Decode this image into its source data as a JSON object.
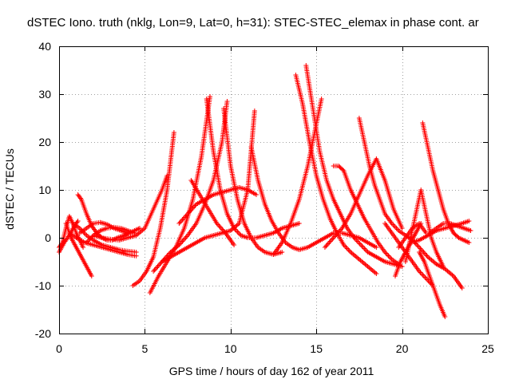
{
  "chart_data": {
    "type": "scatter",
    "title": "dSTEC Iono. truth (nklg, Lon=9, Lat=0, h=31): STEC-STEC_elemax in phase cont. ar",
    "xlabel": "GPS time / hours of day 162 of year 2011",
    "ylabel": "dSTEC  / TECUs",
    "xlim": [
      0,
      25
    ],
    "ylim": [
      -20,
      40
    ],
    "xticks": [
      0,
      5,
      10,
      15,
      20,
      25
    ],
    "yticks": [
      -20,
      -10,
      0,
      10,
      20,
      30,
      40
    ],
    "grid": true,
    "marker": "+",
    "color": "#ff0000",
    "series": [
      {
        "x": [
          0.0,
          0.2,
          0.4,
          0.6,
          0.8,
          1.0,
          1.2,
          1.4
        ],
        "y": [
          -2.0,
          -1.0,
          2.0,
          4.5,
          3.0,
          1.0,
          -0.5,
          -2.0
        ]
      },
      {
        "x": [
          0.0,
          0.3,
          0.6,
          0.9,
          1.1
        ],
        "y": [
          -3.0,
          -1.0,
          0.5,
          2.5,
          3.5
        ]
      },
      {
        "x": [
          0.4,
          0.7,
          1.0,
          1.3,
          1.6,
          1.9
        ],
        "y": [
          3.0,
          0.0,
          -2.0,
          -4.0,
          -6.0,
          -8.0
        ]
      },
      {
        "x": [
          1.1,
          1.3,
          1.6,
          1.9,
          2.2,
          2.5,
          2.8,
          3.1,
          3.4,
          3.8,
          4.1,
          4.4,
          4.7
        ],
        "y": [
          9.0,
          8.0,
          5.0,
          2.5,
          1.0,
          0.0,
          -0.5,
          -0.5,
          0.0,
          0.5,
          1.0,
          1.5,
          2.0
        ]
      },
      {
        "x": [
          0.8,
          1.2,
          1.6,
          2.0,
          2.5,
          3.0,
          3.5,
          4.0,
          4.5
        ],
        "y": [
          3.0,
          2.0,
          0.5,
          -0.5,
          -1.5,
          -2.0,
          -2.5,
          -2.8,
          -3.0
        ]
      },
      {
        "x": [
          0.6,
          1.0,
          1.5,
          2.0,
          2.5,
          3.0,
          3.5,
          4.0,
          4.5
        ],
        "y": [
          1.0,
          0.0,
          -1.0,
          -1.5,
          -2.0,
          -2.5,
          -3.0,
          -3.5,
          -3.8
        ]
      },
      {
        "x": [
          1.2,
          1.6,
          2.0,
          2.4,
          2.8,
          3.2,
          3.6,
          4.0
        ],
        "y": [
          1.0,
          2.0,
          3.0,
          3.2,
          2.8,
          2.0,
          1.5,
          1.0
        ]
      },
      {
        "x": [
          1.6,
          2.0,
          2.4,
          2.8,
          3.2,
          3.6,
          4.0,
          4.4
        ],
        "y": [
          -1.0,
          0.5,
          1.5,
          2.0,
          2.2,
          2.0,
          1.5,
          1.0
        ]
      },
      {
        "x": [
          2.0,
          2.5,
          3.0,
          3.5,
          4.0,
          4.5,
          5.0,
          5.5,
          6.0,
          6.3
        ],
        "y": [
          0.5,
          0.0,
          -0.3,
          -0.5,
          0.0,
          0.5,
          2.0,
          6.0,
          10.0,
          13.0
        ]
      },
      {
        "x": [
          4.3,
          4.7,
          5.1,
          5.5,
          5.9,
          6.3,
          6.7
        ],
        "y": [
          -10.0,
          -9.0,
          -7.0,
          -4.0,
          2.0,
          10.0,
          22.0
        ]
      },
      {
        "x": [
          5.3,
          5.8,
          6.3,
          6.8,
          7.3,
          7.8,
          8.3,
          8.8
        ],
        "y": [
          -11.5,
          -8.0,
          -5.0,
          -2.0,
          2.0,
          8.0,
          17.0,
          29.5
        ]
      },
      {
        "x": [
          5.5,
          6.0,
          6.5,
          7.0,
          7.5,
          8.0,
          8.5,
          9.0,
          9.5,
          9.8
        ],
        "y": [
          -7.0,
          -5.0,
          -3.0,
          -1.5,
          0.5,
          3.0,
          7.0,
          12.0,
          20.0,
          28.5
        ]
      },
      {
        "x": [
          6.0,
          6.5,
          7.0,
          7.5,
          8.0,
          8.5,
          9.0,
          9.5,
          10.0,
          10.5,
          11.0,
          11.4
        ],
        "y": [
          -5.0,
          -4.0,
          -3.0,
          -2.0,
          -1.0,
          0.0,
          0.5,
          1.0,
          1.5,
          3.0,
          10.0,
          26.5
        ]
      },
      {
        "x": [
          7.7,
          8.2,
          8.7,
          9.2,
          9.7,
          10.2
        ],
        "y": [
          12.0,
          9.0,
          6.0,
          3.0,
          1.0,
          -1.5
        ]
      },
      {
        "x": [
          8.6,
          9.0,
          9.4,
          9.8,
          10.2,
          10.6,
          11.0,
          11.5,
          12.0,
          12.5,
          13.0,
          13.5,
          14.0
        ],
        "y": [
          29.0,
          18.0,
          10.0,
          5.0,
          2.0,
          0.5,
          0.0,
          0.0,
          0.5,
          1.0,
          2.0,
          2.5,
          3.0
        ]
      },
      {
        "x": [
          9.6,
          10.0,
          10.4,
          10.8,
          11.2,
          11.6,
          12.0,
          12.5,
          13.0
        ],
        "y": [
          27.0,
          15.0,
          8.0,
          3.0,
          0.0,
          -2.0,
          -3.0,
          -3.5,
          -3.0
        ]
      },
      {
        "x": [
          7.0,
          7.5,
          8.0,
          8.5,
          9.0,
          9.5,
          10.0,
          10.5,
          11.0,
          11.5
        ],
        "y": [
          3.0,
          5.0,
          7.0,
          8.0,
          9.0,
          9.5,
          10.0,
          10.5,
          10.0,
          9.0
        ]
      },
      {
        "x": [
          11.2,
          11.6,
          12.0,
          12.4,
          12.8,
          13.2,
          13.6,
          14.0,
          14.5,
          15.0,
          15.5,
          16.0,
          16.5,
          17.0,
          17.5,
          18.0,
          18.5
        ],
        "y": [
          19.0,
          12.0,
          7.0,
          3.5,
          1.0,
          -1.0,
          -2.0,
          -2.5,
          -2.0,
          -1.0,
          0.0,
          1.0,
          1.0,
          0.5,
          0.0,
          -1.0,
          -2.0
        ]
      },
      {
        "x": [
          12.5,
          13.0,
          13.5,
          14.0,
          14.5,
          14.9,
          15.3
        ],
        "y": [
          -3.5,
          -1.0,
          3.0,
          8.0,
          15.0,
          22.0,
          29.0
        ]
      },
      {
        "x": [
          13.8,
          14.2,
          14.6,
          15.0,
          15.4,
          15.8,
          16.2,
          16.6,
          17.0,
          17.5,
          18.0,
          18.5
        ],
        "y": [
          34.0,
          28.0,
          20.0,
          13.0,
          8.0,
          4.0,
          1.0,
          -1.5,
          -3.0,
          -4.5,
          -6.0,
          -7.5
        ]
      },
      {
        "x": [
          14.4,
          14.8,
          15.2,
          15.6,
          16.0,
          16.4,
          16.8,
          17.2,
          17.6,
          18.0,
          18.5,
          19.0,
          19.5,
          20.0
        ],
        "y": [
          36.0,
          27.0,
          18.0,
          12.0,
          8.0,
          5.0,
          2.0,
          0.0,
          -1.5,
          -3.0,
          -4.0,
          -5.0,
          -5.5,
          -6.0
        ]
      },
      {
        "x": [
          16.0,
          16.3,
          16.6,
          17.0,
          17.4,
          17.8,
          18.2,
          18.6,
          19.0,
          19.4,
          19.8
        ],
        "y": [
          15.0,
          15.0,
          14.0,
          10.0,
          7.0,
          4.0,
          1.5,
          -1.0,
          -3.0,
          -4.5,
          -5.5
        ]
      },
      {
        "x": [
          15.5,
          16.0,
          16.5,
          17.0,
          17.5,
          18.0,
          18.5,
          19.0,
          19.5,
          20.0
        ],
        "y": [
          -2.0,
          0.0,
          2.0,
          5.0,
          9.0,
          13.0,
          16.5,
          12.0,
          6.0,
          2.0
        ]
      },
      {
        "x": [
          17.5,
          17.8,
          18.1,
          18.4,
          18.7,
          19.0,
          19.4,
          19.8,
          20.2,
          20.6,
          21.0,
          21.5,
          22.0,
          22.5,
          23.0,
          23.5
        ],
        "y": [
          25.0,
          20.0,
          15.0,
          11.0,
          8.0,
          5.0,
          3.0,
          1.5,
          0.5,
          -0.5,
          -2.0,
          -4.0,
          -5.5,
          -6.5,
          -8.0,
          -10.5
        ]
      },
      {
        "x": [
          19.0,
          19.4,
          19.8,
          20.2,
          20.6,
          21.0,
          21.4,
          21.8
        ],
        "y": [
          3.0,
          1.0,
          -1.0,
          -3.0,
          -5.0,
          -7.0,
          -8.5,
          -10.0
        ]
      },
      {
        "x": [
          19.6,
          19.9,
          20.2,
          20.5,
          20.8,
          21.1
        ],
        "y": [
          -8.0,
          -5.0,
          -3.0,
          -1.0,
          1.0,
          3.0
        ]
      },
      {
        "x": [
          20.2,
          20.5,
          20.8,
          21.1,
          21.4,
          21.7,
          22.0,
          22.4
        ],
        "y": [
          -5.0,
          0.0,
          5.0,
          10.0,
          5.0,
          0.0,
          -3.0,
          -6.0
        ]
      },
      {
        "x": [
          21.0,
          21.3,
          21.6,
          21.9,
          22.2,
          22.5
        ],
        "y": [
          -3.0,
          -5.0,
          -8.0,
          -11.0,
          -14.0,
          -16.5
        ]
      },
      {
        "x": [
          21.2,
          21.5,
          21.8,
          22.1,
          22.4,
          22.7,
          23.0,
          23.3,
          23.6,
          23.9
        ],
        "y": [
          24.0,
          19.0,
          14.0,
          10.0,
          6.0,
          3.0,
          1.0,
          0.0,
          -0.5,
          -1.0
        ]
      },
      {
        "x": [
          21.6,
          22.0,
          22.4,
          22.8,
          23.2,
          23.6,
          24.0
        ],
        "y": [
          1.0,
          2.0,
          3.0,
          3.0,
          2.5,
          2.0,
          1.5
        ]
      },
      {
        "x": [
          20.5,
          21.0,
          21.5,
          22.0,
          22.5,
          23.0,
          23.5,
          23.9
        ],
        "y": [
          -1.0,
          -0.5,
          0.5,
          1.5,
          2.0,
          2.5,
          3.0,
          3.5
        ]
      },
      {
        "x": [
          19.8,
          20.2,
          20.6,
          21.0,
          21.4
        ],
        "y": [
          -2.0,
          0.0,
          2.0,
          3.0,
          1.0
        ]
      }
    ]
  }
}
